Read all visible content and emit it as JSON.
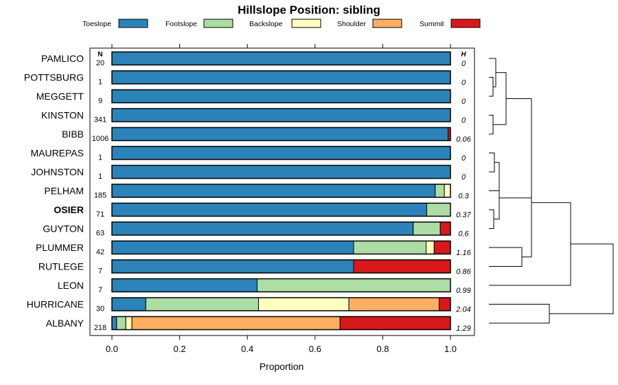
{
  "chart_data": {
    "type": "bar",
    "orientation": "horizontal",
    "stacked": true,
    "title": "Hillslope Position: sibling",
    "xlabel": "Proportion",
    "xlim": [
      0,
      1
    ],
    "x_ticks": [
      "0.0",
      "0.2",
      "0.4",
      "0.6",
      "0.8",
      "1.0"
    ],
    "n_header": "N",
    "h_header": "H",
    "legend_position": "top",
    "series": [
      {
        "name": "Toeslope",
        "color": "#2B83BA"
      },
      {
        "name": "Footslope",
        "color": "#ABDDA4"
      },
      {
        "name": "Backslope",
        "color": "#FFFFBF"
      },
      {
        "name": "Shoulder",
        "color": "#FDAE61"
      },
      {
        "name": "Summit",
        "color": "#D7191C"
      }
    ],
    "rows": [
      {
        "label": "PAMLICO",
        "n": "20",
        "h": "0",
        "bold": false,
        "values": [
          1.0,
          0,
          0,
          0,
          0
        ]
      },
      {
        "label": "POTTSBURG",
        "n": "1",
        "h": "0",
        "bold": false,
        "values": [
          1.0,
          0,
          0,
          0,
          0
        ]
      },
      {
        "label": "MEGGETT",
        "n": "9",
        "h": "0",
        "bold": false,
        "values": [
          1.0,
          0,
          0,
          0,
          0
        ]
      },
      {
        "label": "KINSTON",
        "n": "341",
        "h": "0",
        "bold": false,
        "values": [
          1.0,
          0,
          0,
          0,
          0
        ]
      },
      {
        "label": "BIBB",
        "n": "1006",
        "h": "0.06",
        "bold": false,
        "values": [
          0.993,
          0,
          0,
          0,
          0.007
        ]
      },
      {
        "label": "MAUREPAS",
        "n": "1",
        "h": "0",
        "bold": false,
        "values": [
          1.0,
          0,
          0,
          0,
          0
        ]
      },
      {
        "label": "JOHNSTON",
        "n": "1",
        "h": "0",
        "bold": false,
        "values": [
          1.0,
          0,
          0,
          0,
          0
        ]
      },
      {
        "label": "PELHAM",
        "n": "185",
        "h": "0.3",
        "bold": false,
        "values": [
          0.955,
          0.027,
          0.018,
          0,
          0
        ]
      },
      {
        "label": "OSIER",
        "n": "71",
        "h": "0.37",
        "bold": true,
        "values": [
          0.93,
          0.07,
          0,
          0,
          0
        ]
      },
      {
        "label": "GUYTON",
        "n": "63",
        "h": "0.6",
        "bold": false,
        "values": [
          0.89,
          0.08,
          0,
          0,
          0.03
        ]
      },
      {
        "label": "PLUMMER",
        "n": "42",
        "h": "1.16",
        "bold": false,
        "values": [
          0.714,
          0.214,
          0.024,
          0,
          0.048
        ]
      },
      {
        "label": "RUTLEGE",
        "n": "7",
        "h": "0.86",
        "bold": false,
        "values": [
          0.714,
          0,
          0,
          0,
          0.286
        ]
      },
      {
        "label": "LEON",
        "n": "7",
        "h": "0.99",
        "bold": false,
        "values": [
          0.429,
          0.571,
          0,
          0,
          0
        ]
      },
      {
        "label": "HURRICANE",
        "n": "30",
        "h": "2.04",
        "bold": false,
        "values": [
          0.1,
          0.333,
          0.267,
          0.267,
          0.033
        ]
      },
      {
        "label": "ALBANY",
        "n": "218",
        "h": "1.29",
        "bold": false,
        "values": [
          0.014,
          0.027,
          0.018,
          0.615,
          0.326
        ]
      }
    ]
  }
}
